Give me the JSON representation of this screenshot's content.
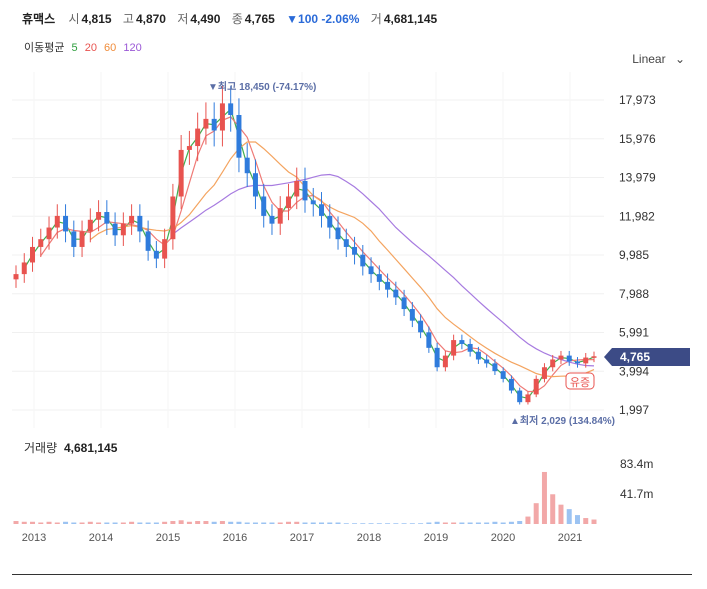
{
  "header": {
    "name": "휴맥스",
    "open_label": "시",
    "open": "4,815",
    "high_label": "고",
    "high": "4,870",
    "low_label": "저",
    "low": "4,490",
    "close_label": "종",
    "close": "4,765",
    "change": "▼100 -2.06%",
    "vol_label": "거",
    "volume": "4,681,145"
  },
  "ma_legend": {
    "title": "이동평균",
    "items": [
      "5",
      "20",
      "60",
      "120"
    ],
    "colors": [
      "#2e9e3e",
      "#e8534f",
      "#f08c3a",
      "#9b59d6"
    ]
  },
  "scale_toggle": "Linear",
  "colors": {
    "up": "#e8534f",
    "down": "#2f7bdc",
    "ma5": "#3fae4f",
    "ma20": "#ef7a76",
    "ma60": "#f4a460",
    "ma120": "#a77be0",
    "badge": "#3c4b86",
    "vol_up": "#f2a8a8",
    "vol_down": "#9cc3f2"
  },
  "chart_data": {
    "type": "candlestick",
    "y_ticks": [
      "17,973",
      "15,976",
      "13,979",
      "11,982",
      "9,985",
      "7,988",
      "5,991",
      "3,994",
      "1,997"
    ],
    "x_ticks": [
      "2013",
      "2014",
      "2015",
      "2016",
      "2017",
      "2018",
      "2019",
      "2020",
      "2021"
    ],
    "current_price": "4,765",
    "high_annotation": "▼최고 18,450 (-74.17%)",
    "low_annotation": "▲최저 2,029 (134.84%)",
    "event_tag": "유증",
    "volume_title": "거래량",
    "volume_value": "4,681,145",
    "volume_ticks": [
      "83.4m",
      "41.7m"
    ],
    "closes": [
      9000,
      9600,
      10400,
      10800,
      11400,
      12000,
      11200,
      10400,
      11200,
      11800,
      12200,
      11600,
      11000,
      11600,
      12000,
      11200,
      10200,
      9800,
      10800,
      13000,
      15400,
      15600,
      16500,
      17000,
      16400,
      17800,
      17200,
      15000,
      14200,
      13000,
      12000,
      11600,
      12400,
      13000,
      13800,
      12800,
      12600,
      12000,
      11400,
      10800,
      10400,
      10000,
      9400,
      9000,
      8600,
      8200,
      7800,
      7200,
      6600,
      6000,
      5200,
      4200,
      4800,
      5600,
      5400,
      5000,
      4600,
      4400,
      4000,
      3600,
      3000,
      2400,
      2800,
      3600,
      4200,
      4600,
      4800,
      4500,
      4400,
      4700,
      4765
    ],
    "volume": [
      4,
      3,
      3,
      2,
      3,
      2,
      3,
      2,
      2,
      3,
      2,
      2,
      2,
      2,
      3,
      2,
      2,
      2,
      3,
      4,
      5,
      3,
      4,
      4,
      3,
      4,
      3,
      3,
      2,
      2,
      2,
      2,
      2,
      3,
      3,
      2,
      2,
      2,
      2,
      2,
      1,
      1,
      1,
      1,
      1,
      1,
      1,
      1,
      1,
      1,
      2,
      3,
      2,
      2,
      2,
      2,
      2,
      2,
      3,
      2,
      3,
      4,
      10,
      28,
      70,
      40,
      26,
      20,
      12,
      8,
      6
    ]
  }
}
